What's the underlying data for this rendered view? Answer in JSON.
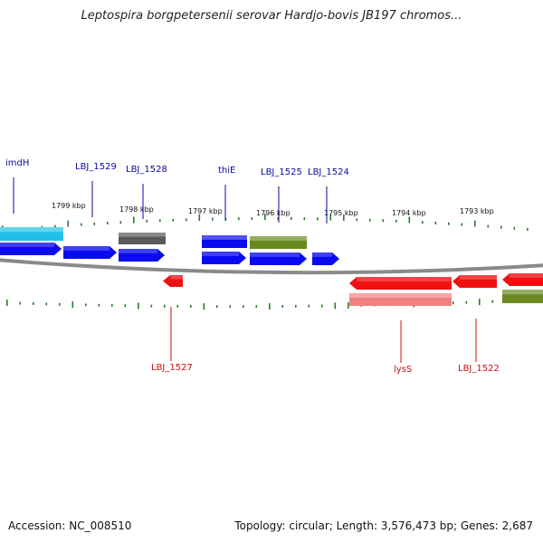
{
  "title": "Leptospira borgpetersenii serovar Hardjo-bovis JB197 chromos...",
  "footer": {
    "accession": "Accession: NC_008510",
    "stats": "Topology: circular; Length: 3,576,473 bp; Genes: 2,687"
  },
  "colors": {
    "forward_cds": "#0a0af0",
    "reverse_cds": "#f01010",
    "forward_label": "#0a0aa0",
    "reverse_label": "#cc1010",
    "ticks": "#2a7a2a",
    "backbone": "#8a8a8a"
  },
  "ruler": [
    "1799 kbp",
    "1798 kbp",
    "1797 kbp",
    "1796 kbp",
    "1795 kbp",
    "1794 kbp",
    "1793 kbp"
  ],
  "gene_labels_forward": [
    "imdH",
    "LBJ_1529",
    "LBJ_1528",
    "thiE",
    "LBJ_1525",
    "LBJ_1524"
  ],
  "gene_labels_reverse": [
    "LBJ_1527",
    "lysS",
    "LBJ_1522"
  ]
}
